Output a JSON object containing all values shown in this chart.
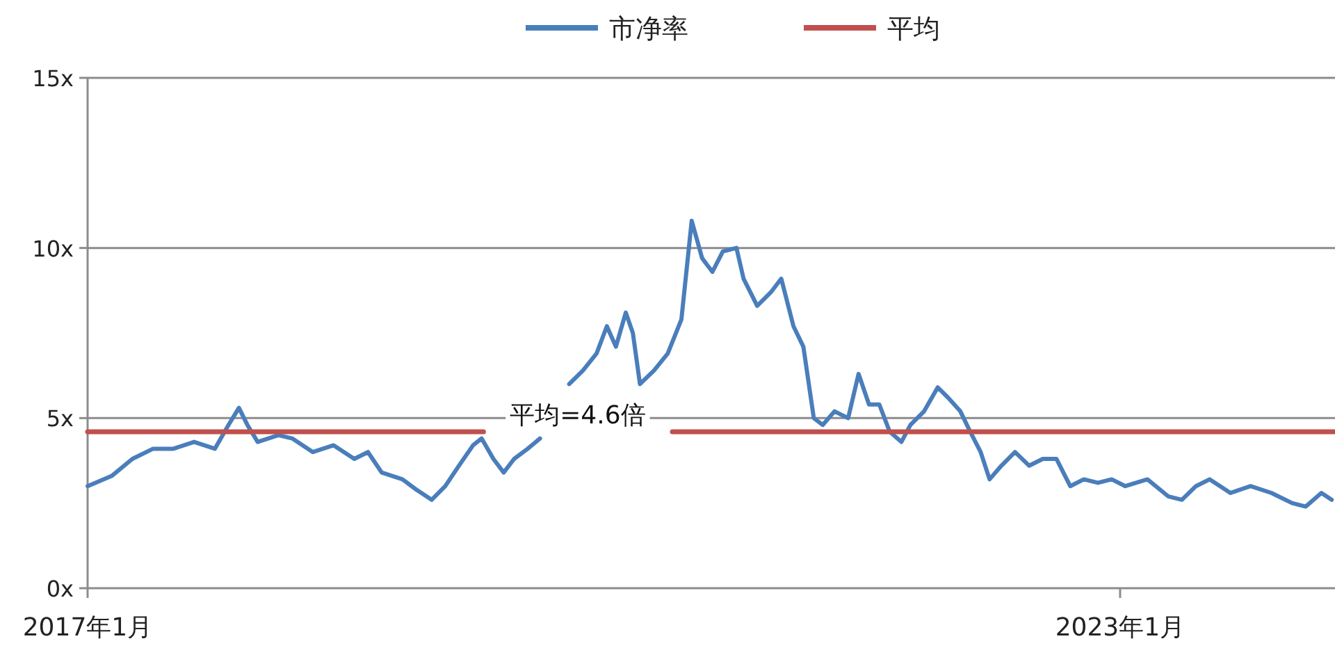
{
  "chart_data": {
    "type": "line",
    "legend": "top",
    "grid": "y",
    "line_style": "solid",
    "xlim": [
      "2017-01-01",
      "2024-04-01"
    ],
    "xticks": [
      {
        "value": "2017-01-01",
        "label": "2017年1月"
      },
      {
        "value": "2023-01-01",
        "label": "2023年1月"
      }
    ],
    "ylim": [
      0,
      15
    ],
    "yticks": [
      {
        "value": 0,
        "label": "0x"
      },
      {
        "value": 5,
        "label": "5x"
      },
      {
        "value": 10,
        "label": "10x"
      },
      {
        "value": 15,
        "label": "15x"
      }
    ],
    "annotations": [
      "平均=4.6倍"
    ],
    "series": [
      {
        "name": "市净率",
        "color": "#4a7ebb",
        "x": [
          "2017-01-01",
          "2017-02-21",
          "2017-04-06",
          "2017-05-20",
          "2017-07-02",
          "2017-08-15",
          "2017-09-28",
          "2017-10-27",
          "2017-11-18",
          "2017-12-06",
          "2017-12-28",
          "2018-02-10",
          "2018-03-11",
          "2018-04-24",
          "2018-06-07",
          "2018-07-21",
          "2018-08-19",
          "2018-09-17",
          "2018-10-31",
          "2018-11-29",
          "2019-01-01",
          "2019-01-30",
          "2019-02-28",
          "2019-03-30",
          "2019-04-17",
          "2019-05-12",
          "2019-06-03",
          "2019-06-25",
          "2019-07-24",
          "2019-08-19",
          "2019-09-21",
          "2019-10-20",
          "2019-11-18",
          "2019-12-17",
          "2020-01-08",
          "2020-01-27",
          "2020-02-17",
          "2020-03-03",
          "2020-03-18",
          "2020-04-17",
          "2020-05-16",
          "2020-06-14",
          "2020-07-06",
          "2020-07-28",
          "2020-08-19",
          "2020-09-10",
          "2020-10-09",
          "2020-10-24",
          "2020-11-22",
          "2020-12-21",
          "2021-01-12",
          "2021-02-07",
          "2021-02-28",
          "2021-03-22",
          "2021-04-10",
          "2021-05-05",
          "2021-06-03",
          "2021-06-25",
          "2021-07-17",
          "2021-08-08",
          "2021-08-30",
          "2021-09-24",
          "2021-10-13",
          "2021-11-11",
          "2021-12-10",
          "2022-01-01",
          "2022-01-27",
          "2022-02-17",
          "2022-03-11",
          "2022-03-30",
          "2022-04-24",
          "2022-05-23",
          "2022-06-22",
          "2022-07-21",
          "2022-08-19",
          "2022-09-17",
          "2022-10-16",
          "2022-11-15",
          "2022-12-14",
          "2023-01-12",
          "2023-02-28",
          "2023-04-13",
          "2023-05-12",
          "2023-06-11",
          "2023-07-10",
          "2023-08-23",
          "2023-10-05",
          "2023-11-18",
          "2024-01-01",
          "2024-01-30",
          "2024-03-03",
          "2024-03-25"
        ],
        "values": [
          3.0,
          3.3,
          3.8,
          4.1,
          4.1,
          4.3,
          4.1,
          4.8,
          5.3,
          4.8,
          4.3,
          4.5,
          4.4,
          4.0,
          4.2,
          3.8,
          4.0,
          3.4,
          3.2,
          2.9,
          2.6,
          3.0,
          3.6,
          4.2,
          4.4,
          3.8,
          3.4,
          3.8,
          4.1,
          4.4,
          null,
          6.0,
          6.4,
          6.9,
          7.7,
          7.1,
          8.1,
          7.5,
          6.0,
          6.4,
          6.9,
          7.9,
          10.8,
          9.7,
          9.3,
          9.9,
          10.0,
          9.1,
          8.3,
          8.7,
          9.1,
          7.7,
          7.1,
          5.0,
          4.8,
          5.2,
          5.0,
          6.3,
          5.4,
          5.4,
          4.6,
          4.3,
          4.8,
          5.2,
          5.9,
          5.6,
          5.2,
          4.6,
          4.0,
          3.2,
          3.6,
          4.0,
          3.6,
          3.8,
          3.8,
          3.0,
          3.2,
          3.1,
          3.2,
          3.0,
          3.2,
          2.7,
          2.6,
          3.0,
          3.2,
          2.8,
          3.0,
          2.8,
          2.5,
          2.4,
          2.8,
          2.6
        ]
      },
      {
        "name": "平均",
        "color": "#c0504d",
        "x": [
          "2017-01-01",
          "2019-04-21",
          "2019-11-07",
          "2020-05-26",
          "2024-04-01"
        ],
        "values": [
          4.6,
          4.6,
          null,
          4.6,
          4.6
        ]
      }
    ]
  }
}
